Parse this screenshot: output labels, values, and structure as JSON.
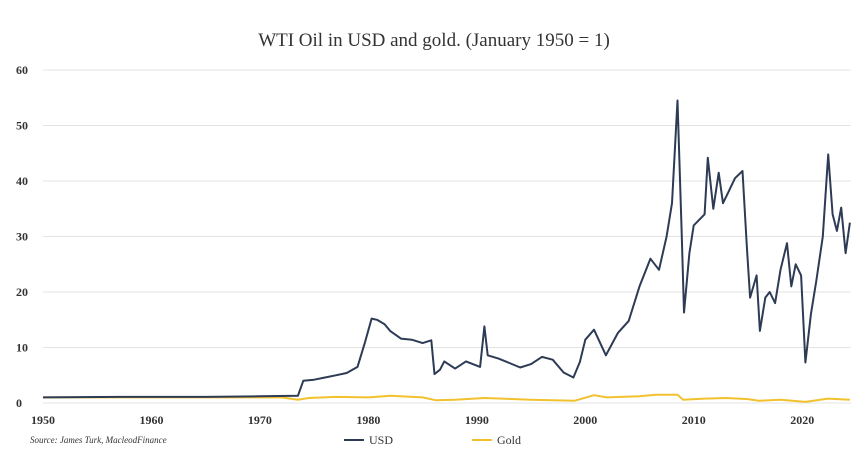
{
  "chart_data": {
    "type": "line",
    "title": "WTI Oil in USD and gold. (January 1950 = 1)",
    "source": "Source: James Turk, MacleodFinance",
    "xlabel": "",
    "ylabel": "",
    "xlim": [
      1950,
      2024.5
    ],
    "ylim": [
      0,
      60
    ],
    "x_ticks": [
      "1950",
      "1960",
      "1970",
      "1980",
      "1990",
      "2000",
      "2010",
      "2020"
    ],
    "y_ticks": [
      "0",
      "10",
      "20",
      "30",
      "40",
      "50",
      "60"
    ],
    "grid": "horizontal",
    "legend_position": "bottom",
    "series": [
      {
        "name": "USD",
        "color": "#2e3b55",
        "points": [
          [
            1950,
            1
          ],
          [
            1957,
            1.1
          ],
          [
            1965,
            1.1
          ],
          [
            1970,
            1.2
          ],
          [
            1973.5,
            1.3
          ],
          [
            1974,
            4
          ],
          [
            1975,
            4.2
          ],
          [
            1976,
            4.6
          ],
          [
            1977,
            5.0
          ],
          [
            1978,
            5.4
          ],
          [
            1979,
            6.5
          ],
          [
            1979.7,
            11
          ],
          [
            1980.3,
            15.2
          ],
          [
            1980.8,
            15.0
          ],
          [
            1981.5,
            14.2
          ],
          [
            1982,
            13.0
          ],
          [
            1983,
            11.6
          ],
          [
            1984,
            11.4
          ],
          [
            1985,
            10.8
          ],
          [
            1985.8,
            11.3
          ],
          [
            1986.1,
            5.2
          ],
          [
            1986.6,
            6.0
          ],
          [
            1987,
            7.5
          ],
          [
            1988,
            6.2
          ],
          [
            1989,
            7.5
          ],
          [
            1990.3,
            6.5
          ],
          [
            1990.7,
            13.8
          ],
          [
            1991,
            8.6
          ],
          [
            1992,
            8.0
          ],
          [
            1993,
            7.2
          ],
          [
            1994,
            6.4
          ],
          [
            1995,
            7.0
          ],
          [
            1996,
            8.3
          ],
          [
            1997,
            7.8
          ],
          [
            1998,
            5.5
          ],
          [
            1998.9,
            4.6
          ],
          [
            1999.5,
            7.4
          ],
          [
            2000,
            11.4
          ],
          [
            2000.8,
            13.2
          ],
          [
            2001.9,
            8.6
          ],
          [
            2002.5,
            10.8
          ],
          [
            2003,
            12.6
          ],
          [
            2004,
            14.8
          ],
          [
            2005,
            21.0
          ],
          [
            2006,
            26.0
          ],
          [
            2006.8,
            24.0
          ],
          [
            2007.5,
            30.0
          ],
          [
            2008.0,
            36.0
          ],
          [
            2008.5,
            54.5
          ],
          [
            2008.9,
            30.0
          ],
          [
            2009.1,
            16.3
          ],
          [
            2009.6,
            27.0
          ],
          [
            2010,
            32.0
          ],
          [
            2011,
            34.0
          ],
          [
            2011.3,
            44.2
          ],
          [
            2011.8,
            35.0
          ],
          [
            2012.3,
            41.5
          ],
          [
            2012.7,
            36.0
          ],
          [
            2013.2,
            38.0
          ],
          [
            2013.8,
            40.5
          ],
          [
            2014.5,
            41.8
          ],
          [
            2014.9,
            28.0
          ],
          [
            2015.2,
            19.0
          ],
          [
            2015.8,
            23.0
          ],
          [
            2016.1,
            13.0
          ],
          [
            2016.6,
            19.0
          ],
          [
            2017,
            20.0
          ],
          [
            2017.5,
            18.0
          ],
          [
            2018,
            24.0
          ],
          [
            2018.6,
            28.8
          ],
          [
            2019,
            21.0
          ],
          [
            2019.4,
            25.0
          ],
          [
            2019.9,
            23.0
          ],
          [
            2020.3,
            7.3
          ],
          [
            2020.8,
            16.0
          ],
          [
            2021.3,
            22.0
          ],
          [
            2021.9,
            30.0
          ],
          [
            2022.4,
            44.8
          ],
          [
            2022.8,
            34.0
          ],
          [
            2023.2,
            31.0
          ],
          [
            2023.6,
            35.2
          ],
          [
            2024,
            27.0
          ],
          [
            2024.4,
            32.5
          ]
        ]
      },
      {
        "name": "Gold",
        "color": "#f2c12e",
        "points": [
          [
            1950,
            1
          ],
          [
            1955,
            1
          ],
          [
            1960,
            1
          ],
          [
            1965,
            1
          ],
          [
            1970,
            1
          ],
          [
            1972,
            1.0
          ],
          [
            1973.5,
            0.6
          ],
          [
            1974.5,
            0.9
          ],
          [
            1977,
            1.1
          ],
          [
            1980,
            1.0
          ],
          [
            1982,
            1.3
          ],
          [
            1985,
            1.0
          ],
          [
            1986.2,
            0.5
          ],
          [
            1988,
            0.6
          ],
          [
            1990.7,
            0.9
          ],
          [
            1995,
            0.6
          ],
          [
            1999,
            0.4
          ],
          [
            2000.8,
            1.4
          ],
          [
            2002,
            1.0
          ],
          [
            2005,
            1.2
          ],
          [
            2006.5,
            1.5
          ],
          [
            2008.5,
            1.5
          ],
          [
            2009,
            0.6
          ],
          [
            2011,
            0.8
          ],
          [
            2013,
            0.9
          ],
          [
            2015,
            0.7
          ],
          [
            2016,
            0.4
          ],
          [
            2018,
            0.6
          ],
          [
            2020.3,
            0.2
          ],
          [
            2022.4,
            0.8
          ],
          [
            2024.4,
            0.6
          ]
        ]
      }
    ]
  }
}
